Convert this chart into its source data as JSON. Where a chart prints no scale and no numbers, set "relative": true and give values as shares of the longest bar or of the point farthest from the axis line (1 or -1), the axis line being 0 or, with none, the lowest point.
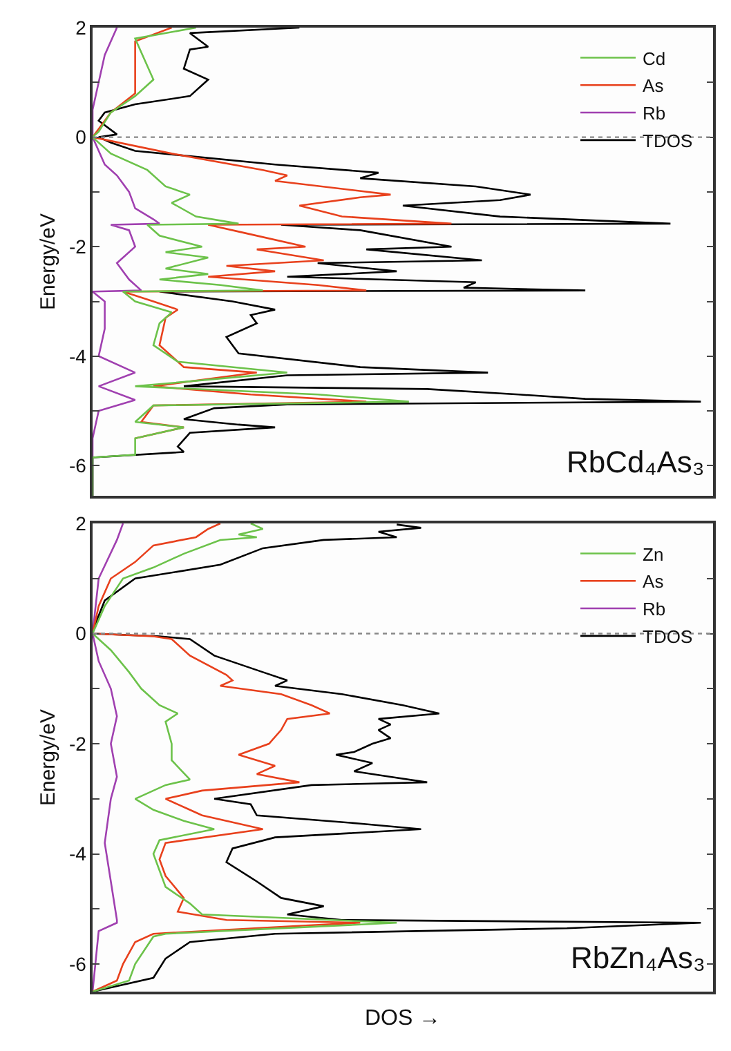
{
  "chart_data": [
    {
      "type": "line",
      "orientation": "horizontal",
      "relative": true,
      "ylabel": "Energy/eV",
      "ylim": [
        -6.55,
        2
      ],
      "yticks": [
        -6,
        {
          "value": -5,
          "label": null
        },
        -4,
        {
          "value": -3,
          "label": null
        },
        -2,
        {
          "value": -1,
          "label": null
        },
        0,
        {
          "value": 1,
          "label": null
        },
        2
      ],
      "tick_labels": "y",
      "legend": "top right",
      "annotations": [
        "RbCd₄As₃"
      ],
      "ref_lines": [
        {
          "axis": "y",
          "value": 0,
          "label": null,
          "color": "#888888",
          "line_style": "dotted"
        }
      ],
      "series": [
        {
          "name": "Cd",
          "color": "#6cc24a",
          "x": [
            2.0,
            1.8,
            1.55,
            1.05,
            0.75,
            0.45,
            0.1,
            0,
            -0.3,
            -0.6,
            -0.9,
            -1.05,
            -1.2,
            -1.45,
            -1.58,
            -1.6,
            -1.8,
            -2.0,
            -2.1,
            -2.2,
            -2.4,
            -2.5,
            -2.6,
            -2.7,
            -2.8,
            -2.82,
            -3.0,
            -3.2,
            -3.4,
            -3.8,
            -4.1,
            -4.3,
            -4.55,
            -4.7,
            -4.83,
            -4.9,
            -5.2,
            -5.3,
            -5.5,
            -5.8,
            -5.85,
            -6.55
          ],
          "values": [
            0.17,
            0.07,
            0.08,
            0.1,
            0.07,
            0.03,
            0.01,
            0.0,
            0.03,
            0.09,
            0.12,
            0.16,
            0.13,
            0.17,
            0.24,
            0.09,
            0.11,
            0.18,
            0.12,
            0.19,
            0.12,
            0.19,
            0.11,
            0.21,
            0.28,
            0.05,
            0.07,
            0.13,
            0.11,
            0.1,
            0.14,
            0.32,
            0.07,
            0.37,
            0.52,
            0.1,
            0.07,
            0.15,
            0.07,
            0.07,
            0.0,
            0.0
          ]
        },
        {
          "name": "As",
          "color": "#e8401c",
          "x": [
            2.0,
            1.75,
            1.3,
            0.8,
            0.45,
            0,
            -0.3,
            -0.6,
            -0.7,
            -0.8,
            -1.05,
            -1.1,
            -1.25,
            -1.45,
            -1.58,
            -1.6,
            -1.75,
            -2.0,
            -2.05,
            -2.25,
            -2.35,
            -2.45,
            -2.55,
            -2.7,
            -2.8,
            -2.82,
            -3.0,
            -3.15,
            -3.3,
            -3.8,
            -4.2,
            -4.3,
            -4.55,
            -4.7,
            -4.83,
            -4.9,
            -5.2,
            -5.3,
            -5.5
          ],
          "values": [
            0.13,
            0.07,
            0.07,
            0.07,
            0.03,
            0.0,
            0.13,
            0.28,
            0.32,
            0.3,
            0.49,
            0.44,
            0.34,
            0.41,
            0.59,
            0.19,
            0.25,
            0.35,
            0.27,
            0.38,
            0.22,
            0.3,
            0.19,
            0.37,
            0.45,
            0.05,
            0.1,
            0.14,
            0.12,
            0.11,
            0.15,
            0.27,
            0.1,
            0.26,
            0.45,
            0.1,
            0.08,
            0.15,
            0.07
          ]
        },
        {
          "name": "Rb",
          "color": "#a040b0",
          "x": [
            2.0,
            1.5,
            1.0,
            0.5,
            0,
            -0.5,
            -0.7,
            -1.0,
            -1.3,
            -1.5,
            -1.58,
            -1.6,
            -1.7,
            -2.0,
            -2.3,
            -2.6,
            -2.8,
            -2.82,
            -3.0,
            -3.5,
            -4.0,
            -4.3,
            -4.55,
            -4.8,
            -5.0,
            -5.5,
            -6.55
          ],
          "values": [
            0.04,
            0.02,
            0.01,
            0.0,
            0.0,
            0.02,
            0.04,
            0.06,
            0.07,
            0.1,
            0.11,
            0.03,
            0.06,
            0.07,
            0.04,
            0.06,
            0.08,
            0.0,
            0.02,
            0.02,
            0.01,
            0.07,
            0.01,
            0.07,
            0.01,
            0.0,
            0.0
          ]
        },
        {
          "name": "TDOS",
          "color": "#000000",
          "x": [
            2.0,
            1.9,
            1.65,
            1.6,
            1.25,
            1.05,
            0.75,
            0.6,
            0.45,
            0.3,
            0.05,
            0,
            -0.1,
            -0.25,
            -0.5,
            -0.65,
            -0.75,
            -0.9,
            -1.05,
            -1.15,
            -1.25,
            -1.45,
            -1.58,
            -1.6,
            -1.7,
            -2.0,
            -2.05,
            -2.25,
            -2.3,
            -2.45,
            -2.55,
            -2.65,
            -2.75,
            -2.8,
            -2.82,
            -3.0,
            -3.15,
            -3.25,
            -3.4,
            -3.65,
            -3.95,
            -4.2,
            -4.3,
            -4.35,
            -4.55,
            -4.6,
            -4.7,
            -4.78,
            -4.83,
            -4.88,
            -4.95,
            -5.15,
            -5.25,
            -5.3,
            -5.4,
            -5.65,
            -5.75,
            -5.85,
            -6.55
          ],
          "values": [
            0.34,
            0.16,
            0.19,
            0.16,
            0.15,
            0.19,
            0.16,
            0.07,
            0.02,
            0.01,
            0.04,
            0.01,
            0.03,
            0.07,
            0.3,
            0.47,
            0.44,
            0.63,
            0.72,
            0.67,
            0.51,
            0.67,
            0.95,
            0.31,
            0.44,
            0.59,
            0.45,
            0.64,
            0.37,
            0.5,
            0.32,
            0.63,
            0.61,
            0.81,
            0.11,
            0.23,
            0.3,
            0.26,
            0.27,
            0.22,
            0.24,
            0.44,
            0.65,
            0.32,
            0.15,
            0.55,
            0.7,
            0.81,
            1.0,
            0.32,
            0.2,
            0.15,
            0.24,
            0.3,
            0.16,
            0.14,
            0.15,
            0.0,
            0.0
          ]
        }
      ]
    },
    {
      "type": "line",
      "orientation": "horizontal",
      "relative": true,
      "ylabel": "Energy/eV",
      "xlabel": "DOS →",
      "ylim": [
        -6.5,
        2
      ],
      "yticks": [
        -6,
        {
          "value": -5,
          "label": null
        },
        -4,
        {
          "value": -3,
          "label": null
        },
        -2,
        {
          "value": -1,
          "label": null
        },
        0,
        {
          "value": 1,
          "label": null
        },
        2
      ],
      "tick_labels": "y",
      "legend": "top right",
      "annotations": [
        "RbZn₄As₃"
      ],
      "ref_lines": [
        {
          "axis": "y",
          "value": 0,
          "label": null,
          "color": "#888888",
          "line_style": "dotted"
        }
      ],
      "series": [
        {
          "name": "Zn",
          "color": "#6cc24a",
          "x": [
            2.0,
            1.9,
            1.8,
            1.75,
            1.7,
            1.45,
            1.2,
            1.0,
            0.5,
            0,
            -0.3,
            -0.7,
            -1.0,
            -1.3,
            -1.45,
            -1.6,
            -2.0,
            -2.3,
            -2.65,
            -2.75,
            -3.0,
            -3.2,
            -3.4,
            -3.55,
            -3.75,
            -4.0,
            -4.3,
            -4.6,
            -4.9,
            -5.1,
            -5.25,
            -5.45,
            -5.5,
            -6.0,
            -6.3,
            -6.5
          ],
          "values": [
            0.26,
            0.28,
            0.24,
            0.27,
            0.21,
            0.15,
            0.1,
            0.05,
            0.02,
            0.0,
            0.03,
            0.06,
            0.08,
            0.11,
            0.14,
            0.12,
            0.13,
            0.13,
            0.16,
            0.12,
            0.07,
            0.1,
            0.15,
            0.2,
            0.11,
            0.1,
            0.11,
            0.12,
            0.16,
            0.18,
            0.5,
            0.12,
            0.1,
            0.07,
            0.06,
            0.0
          ]
        },
        {
          "name": "As",
          "color": "#e8401c",
          "x": [
            2.0,
            1.9,
            1.75,
            1.6,
            1.3,
            1.0,
            0.5,
            0,
            -0.05,
            -0.1,
            -0.4,
            -0.75,
            -0.85,
            -0.95,
            -1.1,
            -1.3,
            -1.45,
            -1.55,
            -1.75,
            -2.0,
            -2.2,
            -2.4,
            -2.55,
            -2.7,
            -2.85,
            -3.0,
            -3.2,
            -3.3,
            -3.55,
            -3.8,
            -4.1,
            -4.4,
            -4.8,
            -5.05,
            -5.2,
            -5.25,
            -5.3,
            -5.45,
            -5.6,
            -6.0,
            -6.3,
            -6.5
          ],
          "values": [
            0.21,
            0.19,
            0.17,
            0.1,
            0.07,
            0.03,
            0.01,
            0.0,
            0.1,
            0.13,
            0.16,
            0.22,
            0.23,
            0.21,
            0.31,
            0.36,
            0.39,
            0.32,
            0.31,
            0.29,
            0.24,
            0.3,
            0.27,
            0.34,
            0.18,
            0.12,
            0.16,
            0.18,
            0.28,
            0.12,
            0.11,
            0.12,
            0.15,
            0.14,
            0.22,
            0.44,
            0.35,
            0.1,
            0.07,
            0.05,
            0.04,
            0.0
          ]
        },
        {
          "name": "Rb",
          "color": "#a040b0",
          "x": [
            2.0,
            1.7,
            1.0,
            0,
            -0.5,
            -1.0,
            -1.5,
            -2.0,
            -2.6,
            -3.0,
            -3.8,
            -4.5,
            -5.2,
            -5.25,
            -5.4,
            -6.5
          ],
          "values": [
            0.05,
            0.04,
            0.01,
            0.0,
            0.01,
            0.03,
            0.04,
            0.03,
            0.04,
            0.03,
            0.02,
            0.03,
            0.04,
            0.04,
            0.01,
            0.0
          ]
        },
        {
          "name": "TDOS",
          "color": "#000000",
          "x": [
            1.98,
            1.92,
            1.85,
            1.75,
            1.7,
            1.55,
            1.25,
            1.0,
            0.6,
            0.05,
            0,
            -0.05,
            -0.1,
            -0.4,
            -0.7,
            -0.85,
            -0.95,
            -1.1,
            -1.3,
            -1.45,
            -1.55,
            -1.65,
            -1.75,
            -1.9,
            -2.0,
            -2.15,
            -2.2,
            -2.35,
            -2.5,
            -2.6,
            -2.7,
            -2.75,
            -3.0,
            -3.1,
            -3.3,
            -3.45,
            -3.55,
            -3.7,
            -3.9,
            -4.15,
            -4.5,
            -4.8,
            -4.95,
            -5.1,
            -5.2,
            -5.25,
            -5.35,
            -5.45,
            -5.6,
            -5.9,
            -6.25,
            -6.5
          ],
          "values": [
            0.5,
            0.54,
            0.47,
            0.5,
            0.38,
            0.28,
            0.21,
            0.07,
            0.02,
            0.0,
            0.0,
            0.11,
            0.16,
            0.2,
            0.28,
            0.32,
            0.3,
            0.41,
            0.51,
            0.57,
            0.47,
            0.49,
            0.47,
            0.49,
            0.46,
            0.43,
            0.4,
            0.46,
            0.43,
            0.49,
            0.55,
            0.36,
            0.2,
            0.26,
            0.27,
            0.44,
            0.54,
            0.3,
            0.23,
            0.22,
            0.27,
            0.31,
            0.38,
            0.32,
            0.41,
            1.0,
            0.78,
            0.3,
            0.16,
            0.12,
            0.1,
            0.0
          ]
        }
      ]
    }
  ]
}
